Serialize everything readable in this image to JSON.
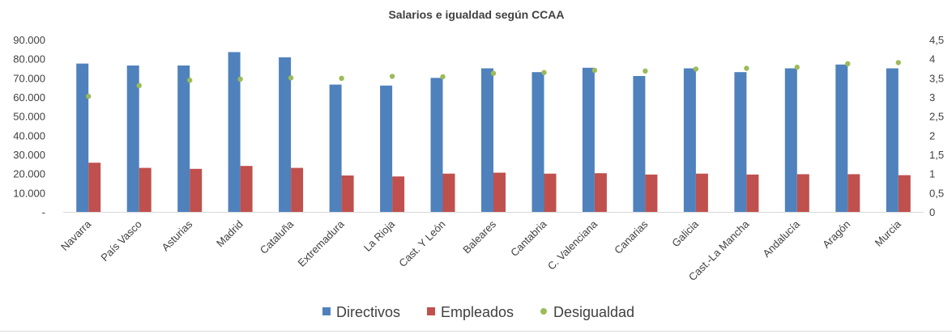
{
  "chart_data": {
    "type": "bar",
    "title": "Salarios e igualdad según CCAA",
    "categories": [
      "Navarra",
      "País Vasco",
      "Asturias",
      "Madrid",
      "Cataluña",
      "Extremadura",
      "La Rioja",
      "Cast. Y León",
      "Baleares",
      "Cantabria",
      "C. Valenciana",
      "Canarias",
      "Galicia",
      "Cast.-La Mancha",
      "Andalucía",
      "Aragón",
      "Murcia"
    ],
    "series": [
      {
        "name": "Directivos",
        "axis": "left",
        "kind": "bar",
        "color": "#4f81bd",
        "values": [
          77500,
          76500,
          76500,
          83500,
          80800,
          66500,
          66000,
          70000,
          75000,
          73000,
          75300,
          71000,
          75000,
          73000,
          75000,
          77000,
          75000
        ]
      },
      {
        "name": "Empleados",
        "axis": "left",
        "kind": "bar",
        "color": "#c0504d",
        "values": [
          25700,
          23000,
          22500,
          24000,
          23000,
          19000,
          18500,
          20000,
          20500,
          20000,
          20200,
          19500,
          20000,
          19500,
          19700,
          19700,
          19200
        ]
      },
      {
        "name": "Desigualdad",
        "axis": "right",
        "kind": "scatter",
        "color": "#9bbb59",
        "values": [
          3.02,
          3.3,
          3.44,
          3.47,
          3.5,
          3.49,
          3.54,
          3.53,
          3.62,
          3.64,
          3.7,
          3.68,
          3.73,
          3.75,
          3.78,
          3.87,
          3.9
        ]
      }
    ],
    "y_left": {
      "min": 0,
      "max": 90000,
      "step": 10000,
      "tick_labels": [
        "-",
        "10.000",
        "20.000",
        "30.000",
        "40.000",
        "50.000",
        "60.000",
        "70.000",
        "80.000",
        "90.000"
      ]
    },
    "y_right": {
      "min": 0,
      "max": 4.5,
      "step": 0.5,
      "tick_labels": [
        "0",
        "0,5",
        "1",
        "1,5",
        "2",
        "2,5",
        "3",
        "3,5",
        "4",
        "4,5"
      ]
    },
    "xlabel": "",
    "ylabel": "",
    "grid": false,
    "legend_position": "bottom"
  }
}
